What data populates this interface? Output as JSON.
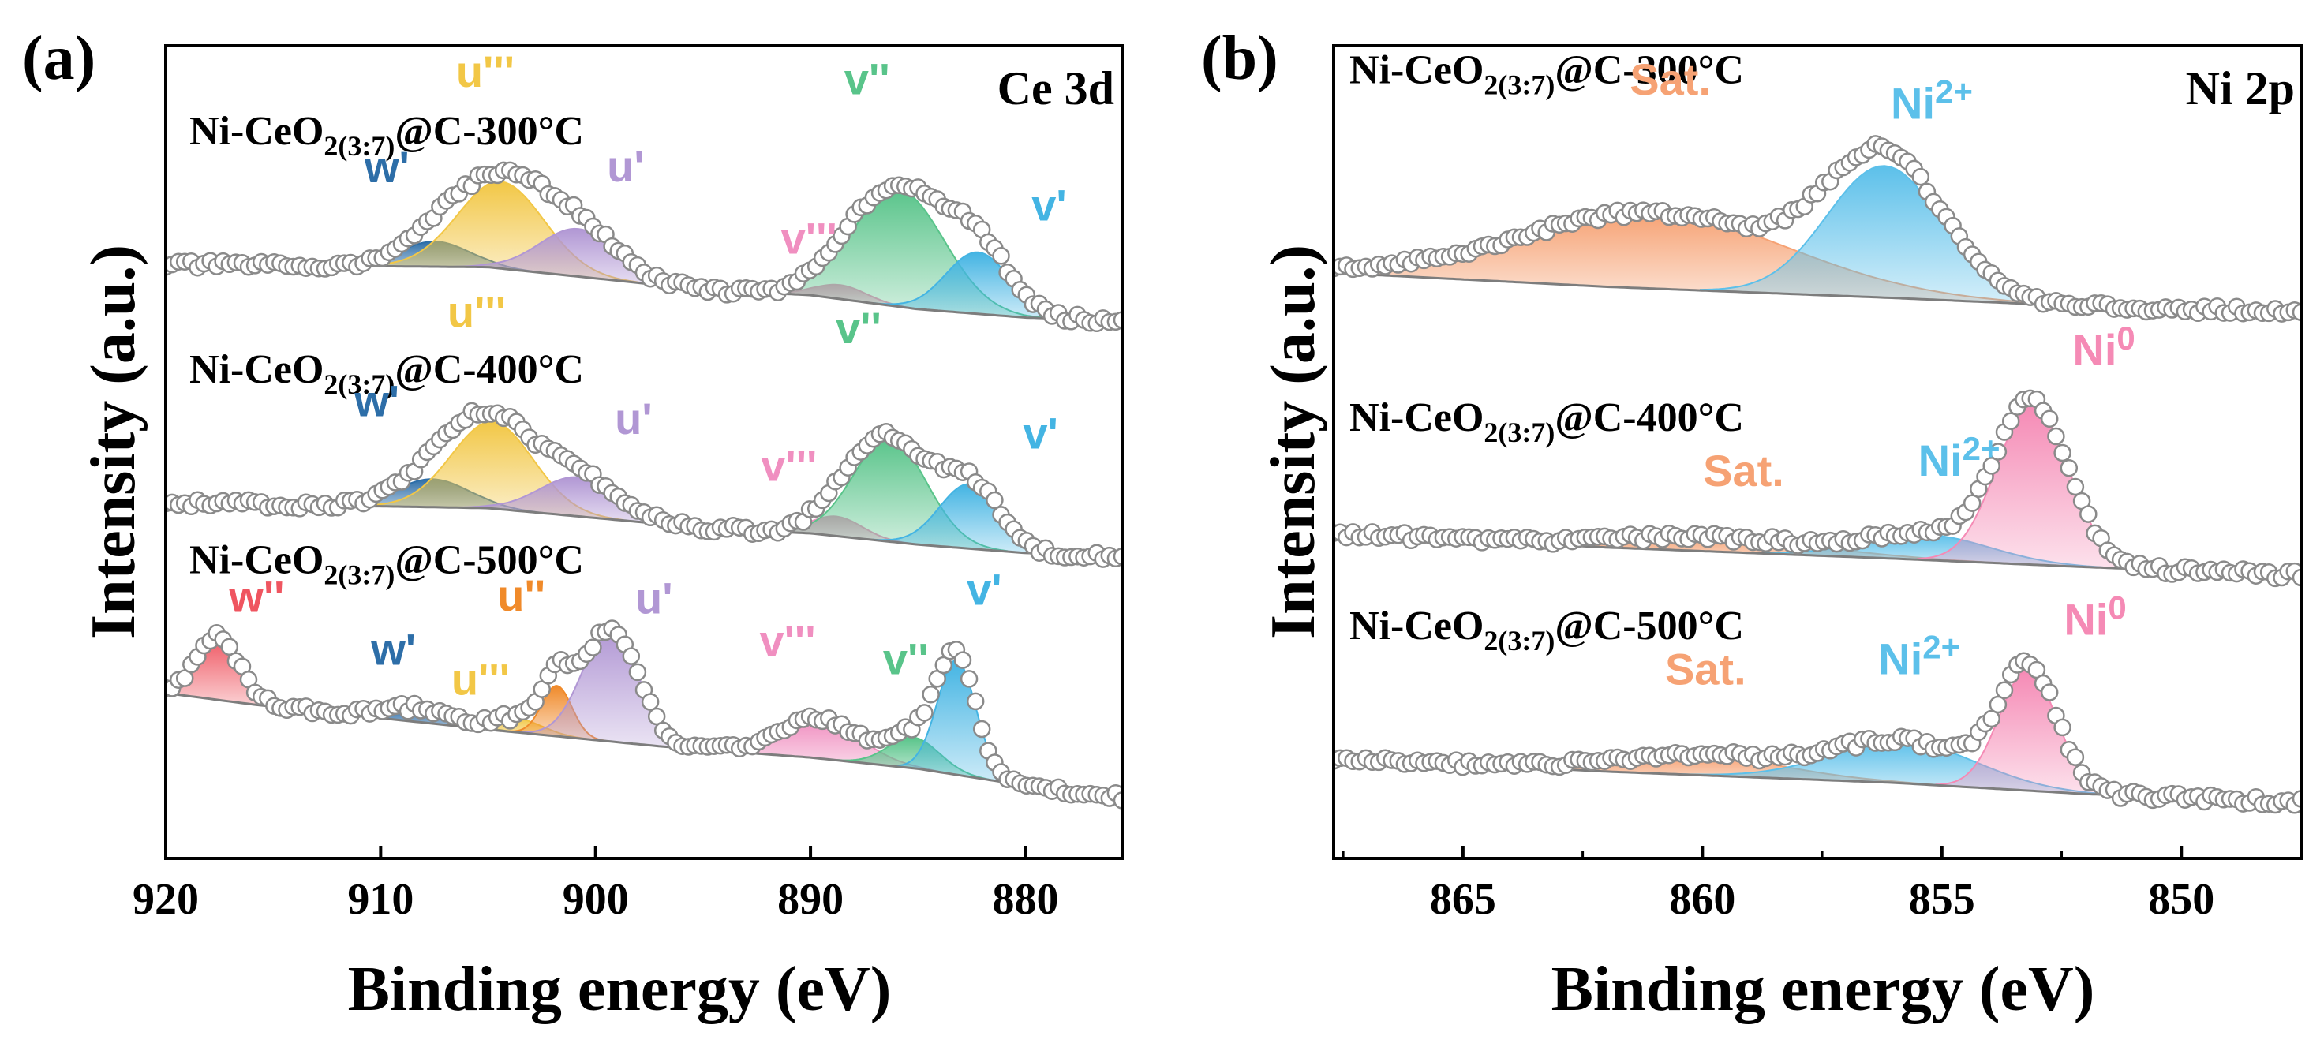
{
  "figure": {
    "panels": [
      {
        "id": "a",
        "label": "(a)",
        "region": "Ce 3d",
        "xlabel": "Binding energy (eV)",
        "ylabel": "Intensity (a.u.)"
      },
      {
        "id": "b",
        "label": "(b)",
        "region": "Ni 2p",
        "xlabel": "Binding energy (eV)",
        "ylabel": "Intensity (a.u.)"
      }
    ]
  },
  "chart_data": [
    {
      "type": "line",
      "title": "Ce 3d",
      "panel": "(a)",
      "xlabel": "Binding energy (eV)",
      "ylabel": "Intensity (a.u.)",
      "xlim": [
        920,
        875.5
      ],
      "x_reversed": true,
      "xticks": [
        920,
        910,
        900,
        890,
        880
      ],
      "yticks": [],
      "ylim": [
        0,
        14.5
      ],
      "grid": false,
      "series": [
        {
          "name": "Ni-CeO2(3:7)@C-300°C",
          "name_base": "Ni-CeO",
          "name_sub": "2(3:7)",
          "name_tail": "@C-300°C",
          "offset": 9.6,
          "baseline": [
            [
              920,
              1.0
            ],
            [
              905,
              0.95
            ],
            [
              895,
              0.55
            ],
            [
              890,
              0.45
            ],
            [
              885,
              0.2
            ],
            [
              880,
              0.05
            ],
            [
              875.5,
              0
            ]
          ],
          "peaks": [
            {
              "label": "w'",
              "center": 907.5,
              "height": 0.45,
              "width": 1.6,
              "color": "#2d6ea8"
            },
            {
              "label": "u'''",
              "center": 904.4,
              "height": 1.55,
              "width": 2.0,
              "color": "#f2c746"
            },
            {
              "label": "u'",
              "center": 900.8,
              "height": 0.85,
              "width": 1.8,
              "color": "#b197d4"
            },
            {
              "label": "v'''",
              "center": 888.6,
              "height": 0.25,
              "width": 1.2,
              "color": "#f08fc0"
            },
            {
              "label": "v''",
              "center": 885.9,
              "height": 2.1,
              "width": 2.1,
              "color": "#59c48a"
            },
            {
              "label": "v'",
              "center": 882.2,
              "height": 1.1,
              "width": 1.5,
              "color": "#43b4e3"
            }
          ]
        },
        {
          "name": "Ni-CeO2(3:7)@C-400°C",
          "name_base": "Ni-CeO",
          "name_sub": "2(3:7)",
          "name_tail": "@C-400°C",
          "offset": 5.4,
          "baseline": [
            [
              920,
              0.95
            ],
            [
              905,
              0.85
            ],
            [
              895,
              0.5
            ],
            [
              890,
              0.4
            ],
            [
              885,
              0.2
            ],
            [
              880,
              0.05
            ],
            [
              875.5,
              0
            ]
          ],
          "peaks": [
            {
              "label": "w'",
              "center": 907.6,
              "height": 0.5,
              "width": 1.7,
              "color": "#2d6ea8"
            },
            {
              "label": "u'''",
              "center": 904.8,
              "height": 1.55,
              "width": 1.9,
              "color": "#f2c746"
            },
            {
              "label": "u'",
              "center": 900.8,
              "height": 0.7,
              "width": 1.8,
              "color": "#b197d4"
            },
            {
              "label": "v'''",
              "center": 888.8,
              "height": 0.35,
              "width": 1.2,
              "color": "#f08fc0"
            },
            {
              "label": "v''",
              "center": 886.3,
              "height": 1.85,
              "width": 1.7,
              "color": "#59c48a"
            },
            {
              "label": "v'",
              "center": 882.6,
              "height": 1.15,
              "width": 1.4,
              "color": "#43b4e3"
            }
          ]
        },
        {
          "name": "Ni-CeO2(3:7)@C-500°C",
          "name_base": "Ni-CeO",
          "name_sub": "2(3:7)",
          "name_tail": "@C-500°C",
          "offset": 1.1,
          "baseline": [
            [
              920,
              1.85
            ],
            [
              916,
              1.65
            ],
            [
              905,
              1.2
            ],
            [
              897,
              0.9
            ],
            [
              890,
              0.7
            ],
            [
              885,
              0.5
            ],
            [
              880,
              0.2
            ],
            [
              875.5,
              0
            ]
          ],
          "peaks": [
            {
              "label": "w''",
              "center": 917.6,
              "height": 1.15,
              "width": 1.0,
              "color": "#ef5560"
            },
            {
              "label": "w'",
              "center": 908.3,
              "height": 0.25,
              "width": 1.6,
              "color": "#2d6ea8"
            },
            {
              "label": "u'''",
              "center": 903.7,
              "height": 0.25,
              "width": 1.2,
              "color": "#f2c746"
            },
            {
              "label": "u''",
              "center": 901.8,
              "height": 0.9,
              "width": 0.7,
              "color": "#f08a2a"
            },
            {
              "label": "u'",
              "center": 899.3,
              "height": 2.0,
              "width": 1.3,
              "color": "#b197d4"
            },
            {
              "label": "v'''",
              "center": 889.6,
              "height": 0.7,
              "width": 1.9,
              "color": "#f08fc0"
            },
            {
              "label": "v''",
              "center": 885.2,
              "height": 0.55,
              "width": 1.2,
              "color": "#59c48a"
            },
            {
              "label": "v'",
              "center": 883.2,
              "height": 2.05,
              "width": 0.9,
              "color": "#43b4e3"
            }
          ]
        }
      ]
    },
    {
      "type": "line",
      "title": "Ni 2p",
      "panel": "(b)",
      "xlabel": "Binding energy (eV)",
      "ylabel": "Intensity (a.u.)",
      "xlim": [
        867.7,
        847.5
      ],
      "x_reversed": true,
      "xticks": [
        865,
        860,
        855,
        850
      ],
      "yticks": [],
      "ylim": [
        0,
        14.5
      ],
      "grid": false,
      "series": [
        {
          "name": "Ni-CeO2(3:7)@C-300°C",
          "name_base": "Ni-CeO",
          "name_sub": "2(3:7)",
          "name_tail": "@C-300°C",
          "offset": 10.1,
          "baseline": [
            [
              867.7,
              0.35
            ],
            [
              862,
              0.1
            ],
            [
              856,
              -0.1
            ],
            [
              852,
              -0.25
            ],
            [
              847.5,
              -0.35
            ]
          ],
          "peaks": [
            {
              "label": "Sat.",
              "center": 861.0,
              "height": 1.35,
              "width": 2.8,
              "color": "#f6a274"
            },
            {
              "label": "Ni2+",
              "label_base": "Ni",
              "label_sup": "2+",
              "center": 856.2,
              "height": 2.35,
              "width": 1.2,
              "color": "#5cc0ea"
            }
          ]
        },
        {
          "name": "Ni-CeO2(3:7)@C-400°C",
          "name_base": "Ni-CeO",
          "name_sub": "2(3:7)",
          "name_tail": "@C-400°C",
          "offset": 5.3,
          "baseline": [
            [
              867.7,
              0.5
            ],
            [
              862,
              0.25
            ],
            [
              856,
              0.05
            ],
            [
              852,
              -0.1
            ],
            [
              847.5,
              -0.25
            ]
          ],
          "peaks": [
            {
              "label": "Sat.",
              "center": 859.8,
              "height": 0.25,
              "width": 2.2,
              "color": "#f6a274"
            },
            {
              "label": "Ni2+",
              "label_base": "Ni",
              "label_sup": "2+",
              "center": 855.3,
              "height": 0.45,
              "width": 1.3,
              "color": "#5cc0ea"
            },
            {
              "label": "Ni0",
              "label_base": "Ni",
              "label_sup": "0",
              "center": 853.1,
              "height": 2.85,
              "width": 0.75,
              "color": "#f58ab5"
            }
          ]
        },
        {
          "name": "Ni-CeO2(3:7)@C-500°C",
          "name_base": "Ni-CeO",
          "name_sub": "2(3:7)",
          "name_tail": "@C-500°C",
          "offset": 1.2,
          "baseline": [
            [
              867.7,
              0.6
            ],
            [
              862,
              0.35
            ],
            [
              856,
              0.15
            ],
            [
              852,
              -0.05
            ],
            [
              847.5,
              -0.2
            ]
          ],
          "peaks": [
            {
              "label": "Sat.",
              "center": 860.1,
              "height": 0.35,
              "width": 1.8,
              "color": "#f6a274"
            },
            {
              "label": "Ni2+",
              "label_base": "Ni",
              "label_sup": "2+",
              "center": 855.8,
              "height": 0.75,
              "width": 1.5,
              "color": "#5cc0ea"
            },
            {
              "label": "Ni0",
              "label_base": "Ni",
              "label_sup": "0",
              "center": 853.2,
              "height": 2.15,
              "width": 0.6,
              "color": "#f58ab5"
            }
          ]
        }
      ]
    }
  ]
}
